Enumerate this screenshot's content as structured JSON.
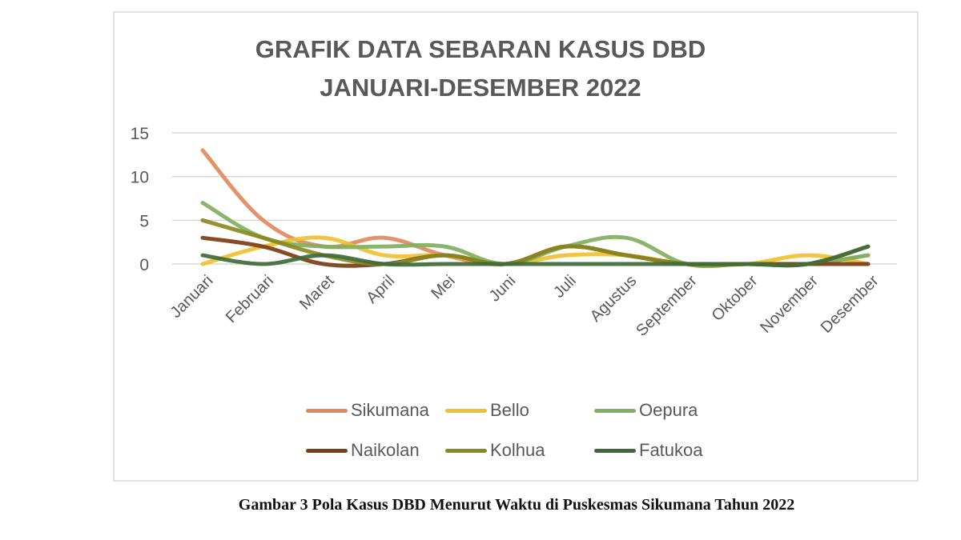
{
  "chart_data": {
    "type": "line",
    "title": "GRAFIK DATA SEBARAN KASUS DBD",
    "subtitle": "JANUARI-DESEMBER 2022",
    "xlabel": "",
    "ylabel": "",
    "ylim": [
      0,
      15
    ],
    "yticks": [
      0,
      5,
      10,
      15
    ],
    "grid": true,
    "legend_position": "bottom",
    "smooth": true,
    "categories": [
      "Januari",
      "Februari",
      "Maret",
      "April",
      "Mei",
      "Juni",
      "Juli",
      "Agustus",
      "September",
      "Oktober",
      "November",
      "Desember"
    ],
    "series": [
      {
        "name": "Sikumana",
        "color": "#e08a5c",
        "values": [
          13,
          5,
          2,
          3,
          1,
          0,
          2,
          1,
          0,
          0,
          0,
          1
        ]
      },
      {
        "name": "Bello",
        "color": "#f0c030",
        "values": [
          0,
          2,
          3,
          1,
          1,
          0,
          1,
          1,
          0,
          0,
          1,
          0
        ]
      },
      {
        "name": "Oepura",
        "color": "#7fb060",
        "values": [
          7,
          3,
          2,
          2,
          2,
          0,
          2,
          3,
          0,
          0,
          0,
          1
        ]
      },
      {
        "name": "Naikolan",
        "color": "#7a3e15",
        "values": [
          3,
          2,
          0,
          0,
          1,
          0,
          2,
          1,
          0,
          0,
          0,
          0
        ]
      },
      {
        "name": "Kolhua",
        "color": "#8a8a20",
        "values": [
          5,
          3,
          1,
          0,
          1,
          0,
          2,
          1,
          0,
          0,
          0,
          2
        ]
      },
      {
        "name": "Fatukoa",
        "color": "#3e6a3a",
        "values": [
          1,
          0,
          1,
          0,
          0,
          0,
          0,
          0,
          0,
          0,
          0,
          2
        ]
      }
    ]
  },
  "header": {
    "title_line1": "GRAFIK DATA SEBARAN KASUS DBD",
    "title_line2": "JANUARI-DESEMBER 2022"
  },
  "legend": {
    "items": [
      {
        "label": "Sikumana",
        "color": "#e08a5c"
      },
      {
        "label": "Bello",
        "color": "#f0c030"
      },
      {
        "label": "Oepura",
        "color": "#7fb060"
      },
      {
        "label": "Naikolan",
        "color": "#7a3e15"
      },
      {
        "label": "Kolhua",
        "color": "#8a8a20"
      },
      {
        "label": "Fatukoa",
        "color": "#3e6a3a"
      }
    ]
  },
  "caption": "Gambar 3 Pola Kasus DBD  Menurut Waktu di Puskesmas Sikumana Tahun 2022"
}
